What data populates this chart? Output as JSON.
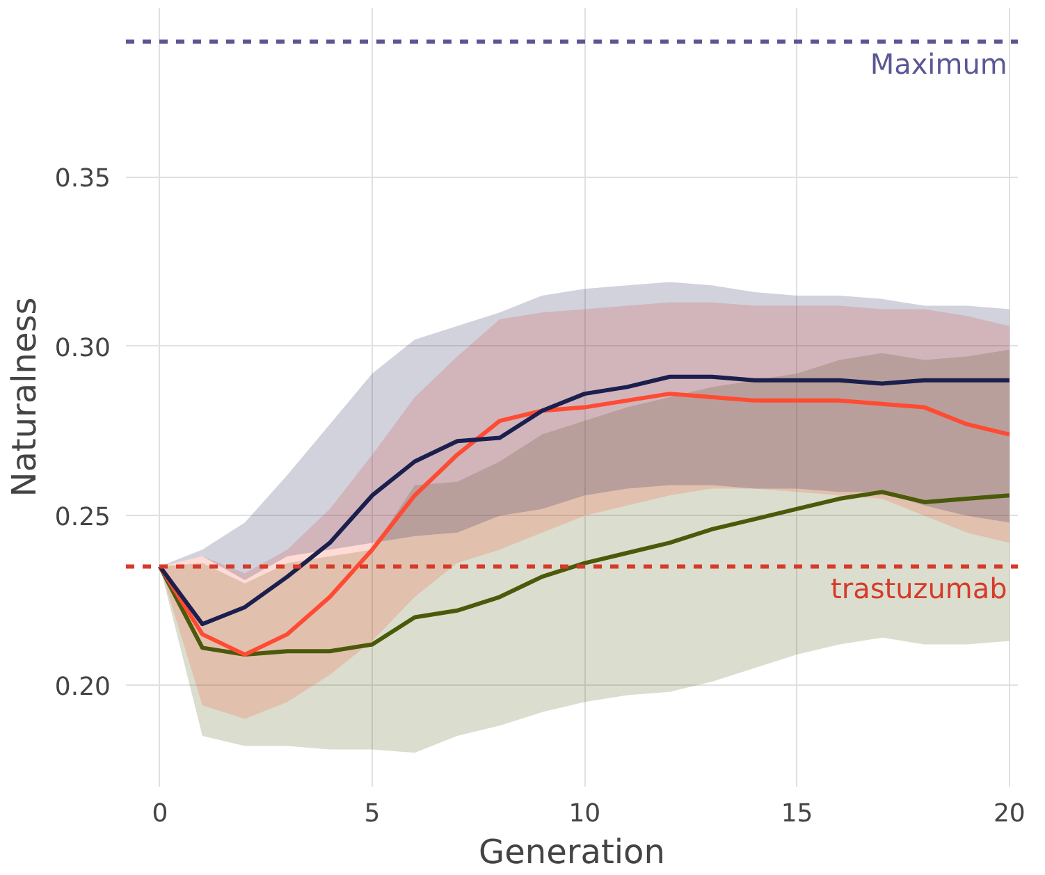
{
  "chart_data": {
    "type": "line",
    "xlabel": "Generation",
    "ylabel": "Naturalness",
    "x": [
      0,
      1,
      2,
      3,
      4,
      5,
      6,
      7,
      8,
      9,
      10,
      11,
      12,
      13,
      14,
      15,
      16,
      17,
      18,
      19,
      20
    ],
    "xlim": [
      -0.8,
      20.2
    ],
    "ylim": [
      0.17,
      0.4
    ],
    "xticks": [
      0,
      5,
      10,
      15,
      20
    ],
    "yticks": [
      {
        "value": 0.2,
        "label": "0.20"
      },
      {
        "value": 0.25,
        "label": "0.25"
      },
      {
        "value": 0.3,
        "label": "0.30"
      },
      {
        "value": 0.35,
        "label": "0.35"
      }
    ],
    "grid": true,
    "series": [
      {
        "color": "#4a5a0a",
        "values": [
          0.235,
          0.211,
          0.209,
          0.21,
          0.21,
          0.212,
          0.22,
          0.222,
          0.226,
          0.232,
          0.236,
          0.239,
          0.242,
          0.246,
          0.249,
          0.252,
          0.255,
          0.257,
          0.254,
          0.255,
          0.256
        ],
        "lower": [
          0.235,
          0.185,
          0.182,
          0.182,
          0.181,
          0.181,
          0.18,
          0.185,
          0.188,
          0.192,
          0.195,
          0.197,
          0.198,
          0.201,
          0.205,
          0.209,
          0.212,
          0.214,
          0.212,
          0.212,
          0.213
        ],
        "upper": [
          0.235,
          0.236,
          0.23,
          0.236,
          0.238,
          0.24,
          0.259,
          0.26,
          0.266,
          0.274,
          0.278,
          0.282,
          0.285,
          0.288,
          0.29,
          0.292,
          0.296,
          0.298,
          0.296,
          0.297,
          0.299
        ]
      },
      {
        "color": "#ff4b33",
        "values": [
          0.235,
          0.215,
          0.209,
          0.215,
          0.226,
          0.24,
          0.256,
          0.268,
          0.278,
          0.281,
          0.282,
          0.284,
          0.286,
          0.285,
          0.284,
          0.284,
          0.284,
          0.283,
          0.282,
          0.277,
          0.274
        ],
        "lower": [
          0.235,
          0.194,
          0.19,
          0.195,
          0.203,
          0.213,
          0.226,
          0.236,
          0.24,
          0.245,
          0.25,
          0.253,
          0.256,
          0.258,
          0.258,
          0.257,
          0.256,
          0.255,
          0.25,
          0.245,
          0.242
        ],
        "upper": [
          0.235,
          0.238,
          0.233,
          0.24,
          0.252,
          0.268,
          0.285,
          0.297,
          0.308,
          0.31,
          0.311,
          0.312,
          0.313,
          0.313,
          0.312,
          0.312,
          0.312,
          0.311,
          0.311,
          0.309,
          0.306
        ]
      },
      {
        "color": "#1a1f4e",
        "values": [
          0.235,
          0.218,
          0.223,
          0.232,
          0.242,
          0.256,
          0.266,
          0.272,
          0.273,
          0.281,
          0.286,
          0.288,
          0.291,
          0.291,
          0.29,
          0.29,
          0.29,
          0.289,
          0.29,
          0.29,
          0.29
        ],
        "lower": [
          0.235,
          0.238,
          0.231,
          0.238,
          0.24,
          0.242,
          0.244,
          0.245,
          0.25,
          0.252,
          0.256,
          0.258,
          0.259,
          0.259,
          0.258,
          0.258,
          0.257,
          0.257,
          0.253,
          0.25,
          0.248
        ],
        "upper": [
          0.235,
          0.24,
          0.248,
          0.262,
          0.277,
          0.292,
          0.302,
          0.306,
          0.31,
          0.315,
          0.317,
          0.318,
          0.319,
          0.318,
          0.316,
          0.315,
          0.315,
          0.314,
          0.312,
          0.312,
          0.311
        ]
      }
    ],
    "ref_lines": [
      {
        "axis": "y",
        "value": 0.39,
        "label": "Maximum",
        "color": "#5b5794",
        "line_style": "dashed"
      },
      {
        "axis": "y",
        "value": 0.235,
        "label": "trastuzumab",
        "color": "#d63b2a",
        "line_style": "dashed"
      }
    ]
  }
}
